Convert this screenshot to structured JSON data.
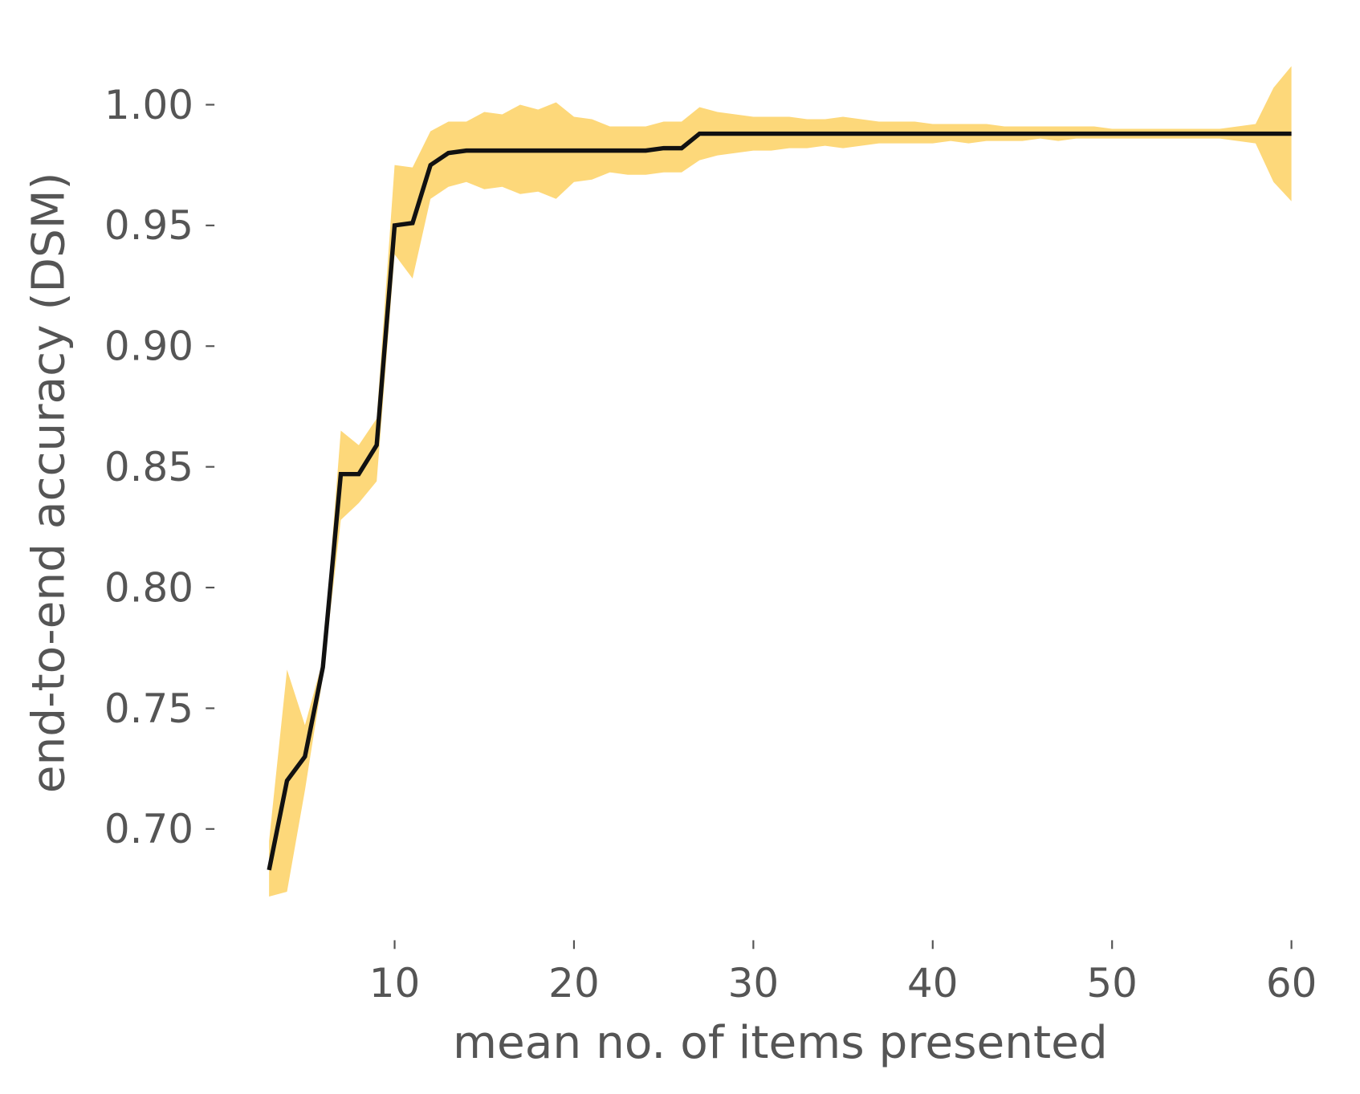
{
  "chart_data": {
    "type": "line",
    "xlabel": "mean no. of items presented",
    "ylabel": "end-to-end accuracy (DSM)",
    "x": [
      3,
      4,
      5,
      6,
      7,
      8,
      9,
      10,
      11,
      12,
      13,
      14,
      15,
      16,
      17,
      18,
      19,
      20,
      21,
      22,
      23,
      24,
      25,
      26,
      27,
      28,
      29,
      30,
      31,
      32,
      33,
      34,
      35,
      36,
      37,
      38,
      39,
      40,
      41,
      42,
      43,
      44,
      45,
      46,
      47,
      48,
      49,
      50,
      51,
      52,
      53,
      54,
      55,
      56,
      57,
      58,
      59,
      60
    ],
    "series": [
      {
        "color": "#111111",
        "values": [
          0.683,
          0.72,
          0.73,
          0.767,
          0.847,
          0.847,
          0.859,
          0.95,
          0.951,
          0.975,
          0.98,
          0.981,
          0.981,
          0.981,
          0.981,
          0.981,
          0.981,
          0.981,
          0.981,
          0.981,
          0.981,
          0.981,
          0.982,
          0.982,
          0.988,
          0.988,
          0.988,
          0.988,
          0.988,
          0.988,
          0.988,
          0.988,
          0.988,
          0.988,
          0.988,
          0.988,
          0.988,
          0.988,
          0.988,
          0.988,
          0.988,
          0.988,
          0.988,
          0.988,
          0.988,
          0.988,
          0.988,
          0.988,
          0.988,
          0.988,
          0.988,
          0.988,
          0.988,
          0.988,
          0.988,
          0.988,
          0.988,
          0.988
        ]
      }
    ],
    "band": {
      "color": "#fdd87a",
      "lower": [
        0.672,
        0.674,
        0.716,
        0.763,
        0.828,
        0.835,
        0.844,
        0.938,
        0.928,
        0.961,
        0.966,
        0.968,
        0.965,
        0.966,
        0.963,
        0.964,
        0.961,
        0.968,
        0.969,
        0.972,
        0.971,
        0.971,
        0.972,
        0.972,
        0.977,
        0.979,
        0.98,
        0.981,
        0.981,
        0.982,
        0.982,
        0.983,
        0.982,
        0.983,
        0.984,
        0.984,
        0.984,
        0.984,
        0.985,
        0.984,
        0.985,
        0.985,
        0.985,
        0.986,
        0.985,
        0.986,
        0.986,
        0.986,
        0.986,
        0.986,
        0.986,
        0.986,
        0.986,
        0.986,
        0.985,
        0.984,
        0.968,
        0.96
      ],
      "upper": [
        0.695,
        0.766,
        0.743,
        0.77,
        0.865,
        0.859,
        0.87,
        0.975,
        0.974,
        0.989,
        0.993,
        0.993,
        0.997,
        0.996,
        1.0,
        0.998,
        1.001,
        0.995,
        0.994,
        0.991,
        0.991,
        0.991,
        0.993,
        0.993,
        0.999,
        0.997,
        0.996,
        0.995,
        0.995,
        0.995,
        0.994,
        0.994,
        0.995,
        0.994,
        0.993,
        0.993,
        0.993,
        0.992,
        0.992,
        0.992,
        0.992,
        0.991,
        0.991,
        0.991,
        0.991,
        0.991,
        0.991,
        0.99,
        0.99,
        0.99,
        0.99,
        0.99,
        0.99,
        0.99,
        0.991,
        0.992,
        1.007,
        1.016
      ]
    },
    "xlim": [
      0.15,
      62.85
    ],
    "xticks": [
      10,
      20,
      30,
      40,
      50,
      60
    ],
    "ylim": [
      0.655,
      1.033
    ],
    "yticks": [
      {
        "value": 0.7,
        "label": "0.70"
      },
      0.75,
      {
        "value": 0.8,
        "label": "0.80"
      },
      0.85,
      {
        "value": 0.9,
        "label": "0.90"
      },
      0.95,
      {
        "value": 1.0,
        "label": "1.00"
      }
    ],
    "grid": false
  }
}
